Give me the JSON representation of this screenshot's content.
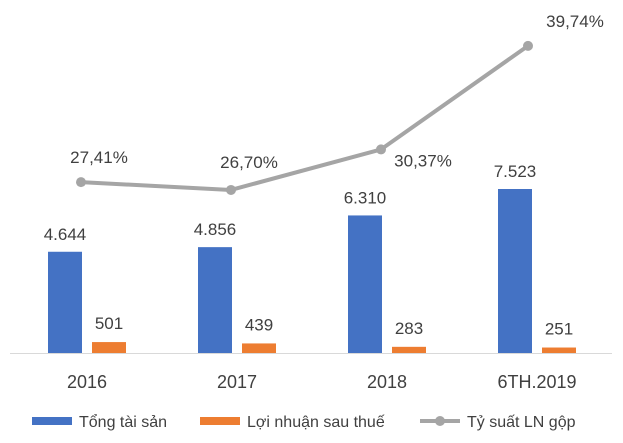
{
  "chart_data": {
    "type": "bar+line",
    "categories": [
      "2016",
      "2017",
      "2018",
      "6TH.2019"
    ],
    "series": [
      {
        "name": "Tổng tài sản",
        "type": "bar",
        "color": "#4472C4",
        "values": [
          4644,
          4856,
          6310,
          7523
        ],
        "labels": [
          "4.644",
          "4.856",
          "6.310",
          "7.523"
        ]
      },
      {
        "name": "Lợi nhuận sau thuế",
        "type": "bar",
        "color": "#ED7D31",
        "values": [
          501,
          439,
          283,
          251
        ],
        "labels": [
          "501",
          "439",
          "283",
          "251"
        ]
      },
      {
        "name": "Tỷ suất LN gộp",
        "type": "line",
        "color": "#A5A5A5",
        "values": [
          27.41,
          26.7,
          30.37,
          39.74
        ],
        "labels": [
          "27,41%",
          "26,70%",
          "30,37%",
          "39,74%"
        ]
      }
    ],
    "bar_axis_range": [
      0,
      7523
    ],
    "line_axis_range": [
      20,
      40
    ],
    "grid": false,
    "legend_position": "bottom"
  }
}
